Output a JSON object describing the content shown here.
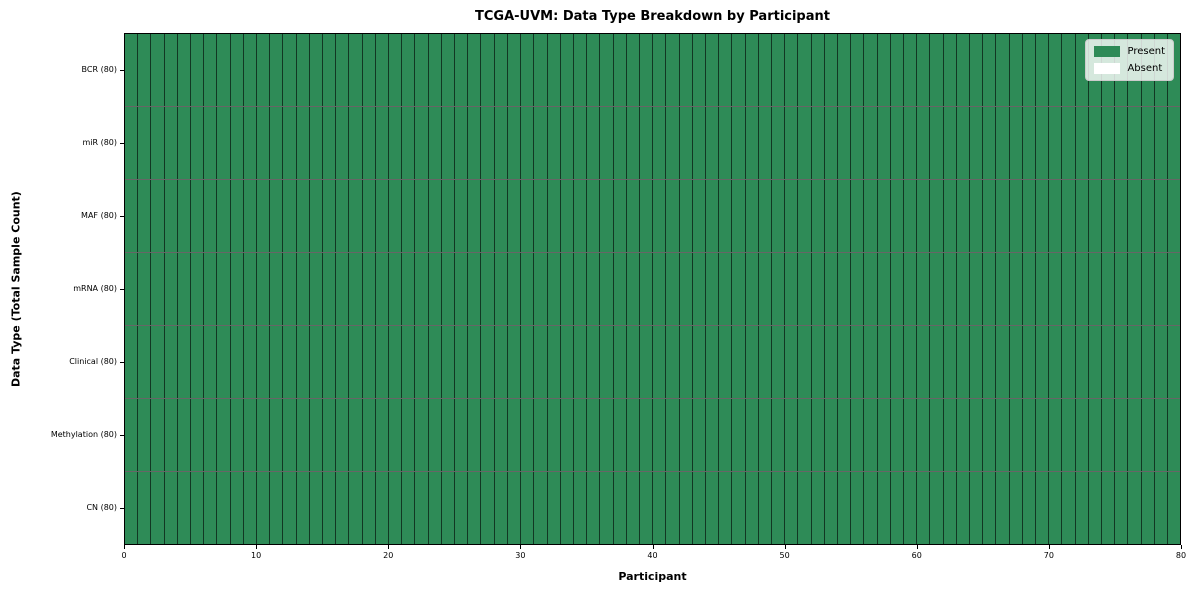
{
  "chart_data": {
    "type": "heatmap",
    "title": "TCGA-UVM: Data Type Breakdown by Participant",
    "xlabel": "Participant",
    "ylabel": "Data Type (Total Sample Count)",
    "xlim": [
      0,
      80
    ],
    "x_ticks": [
      0,
      10,
      20,
      30,
      40,
      50,
      60,
      70,
      80
    ],
    "n_participants": 80,
    "rows": [
      {
        "label": "BCR (80)",
        "total": 80,
        "present_count": 80,
        "absent_count": 0,
        "presence": "11111111111111111111111111111111111111111111111111111111111111111111111111111111"
      },
      {
        "label": "miR (80)",
        "total": 80,
        "present_count": 80,
        "absent_count": 0,
        "presence": "11111111111111111111111111111111111111111111111111111111111111111111111111111111"
      },
      {
        "label": "MAF (80)",
        "total": 80,
        "present_count": 80,
        "absent_count": 0,
        "presence": "11111111111111111111111111111111111111111111111111111111111111111111111111111111"
      },
      {
        "label": "mRNA (80)",
        "total": 80,
        "present_count": 80,
        "absent_count": 0,
        "presence": "11111111111111111111111111111111111111111111111111111111111111111111111111111111"
      },
      {
        "label": "Clinical (80)",
        "total": 80,
        "present_count": 80,
        "absent_count": 0,
        "presence": "11111111111111111111111111111111111111111111111111111111111111111111111111111111"
      },
      {
        "label": "Methylation (80)",
        "total": 80,
        "present_count": 80,
        "absent_count": 0,
        "presence": "11111111111111111111111111111111111111111111111111111111111111111111111111111111"
      },
      {
        "label": "CN (80)",
        "total": 80,
        "present_count": 80,
        "absent_count": 0,
        "presence": "11111111111111111111111111111111111111111111111111111111111111111111111111111111"
      }
    ],
    "colors": {
      "present": "#2e8b57",
      "absent": "#ffffff",
      "cell_edge": "#000000",
      "axis": "#000000"
    },
    "legend": [
      {
        "label": "Present",
        "color": "#2e8b57"
      },
      {
        "label": "Absent",
        "color": "#ffffff"
      }
    ],
    "legend_position": "upper right",
    "grid": "cell-borders"
  }
}
